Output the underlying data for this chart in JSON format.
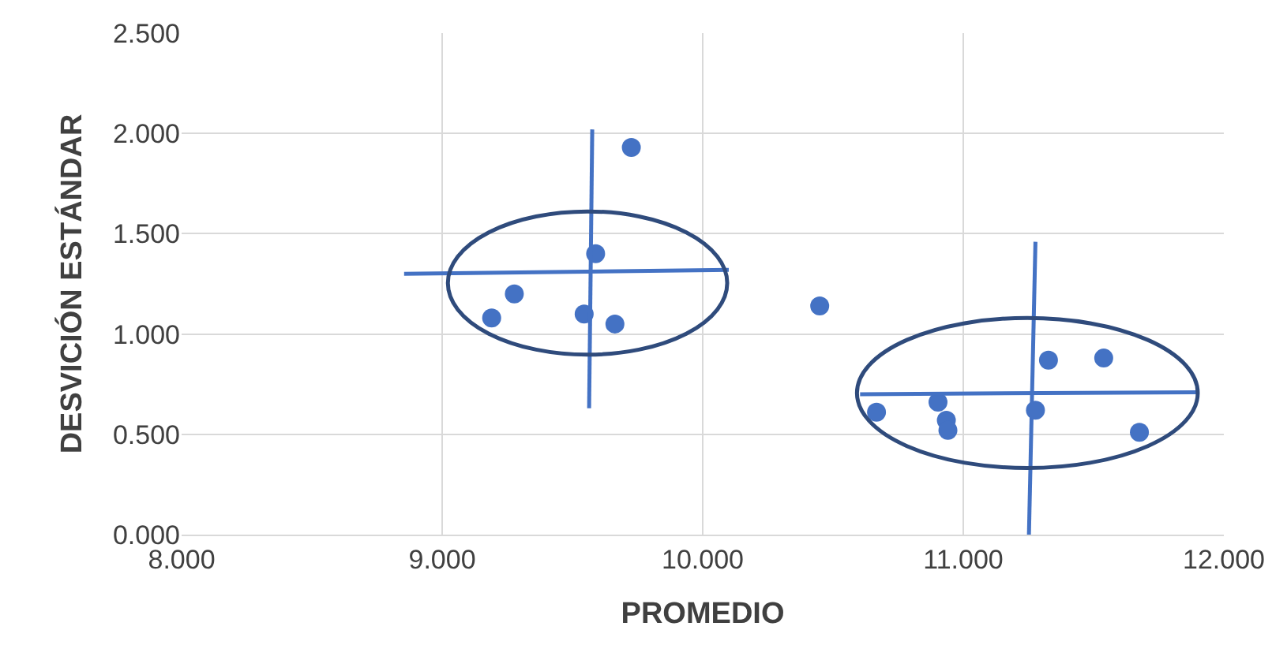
{
  "chart_data": {
    "type": "scatter",
    "xlabel": "PROMEDIO",
    "ylabel": "DESVICIÓN ESTÁNDAR",
    "xlim": [
      8,
      12
    ],
    "ylim": [
      0,
      2.5
    ],
    "xticks": [
      {
        "value": 8,
        "label": "8.000"
      },
      {
        "value": 9,
        "label": "9.000"
      },
      {
        "value": 10,
        "label": "10.000"
      },
      {
        "value": 11,
        "label": "11.000"
      },
      {
        "value": 12,
        "label": "12.000"
      }
    ],
    "yticks": [
      {
        "value": 0,
        "label": "0.000"
      },
      {
        "value": 0.5,
        "label": "0.500"
      },
      {
        "value": 1,
        "label": "1.000"
      },
      {
        "value": 1.5,
        "label": "1.500"
      },
      {
        "value": 2,
        "label": "2.000"
      },
      {
        "value": 2.5,
        "label": "2.500"
      }
    ],
    "grid": true,
    "marker": "circle",
    "series": [
      {
        "type": "scatter",
        "color": "#4472c4",
        "x": [
          9.19,
          9.277,
          9.589,
          9.545,
          9.663,
          9.726,
          10.449,
          10.667,
          10.903,
          10.935,
          10.941,
          11.277,
          11.327,
          11.539,
          11.676
        ],
        "values": [
          1.08,
          1.2,
          1.4,
          1.1,
          1.05,
          1.93,
          1.14,
          0.61,
          0.66,
          0.57,
          0.52,
          0.62,
          0.87,
          0.88,
          0.51
        ]
      },
      {
        "type": "line",
        "marker": "none",
        "line_style": "solid",
        "color": "#4472c4",
        "x": [
          8.854,
          10.1
        ],
        "values": [
          1.3,
          1.32
        ]
      },
      {
        "type": "line",
        "marker": "none",
        "line_style": "solid",
        "color": "#4472c4",
        "x": [
          9.576,
          9.564
        ],
        "values": [
          2.02,
          0.63
        ]
      },
      {
        "type": "line",
        "marker": "none",
        "line_style": "solid",
        "color": "#4472c4",
        "x": [
          10.604,
          11.894
        ],
        "values": [
          0.7,
          0.71
        ]
      },
      {
        "type": "line",
        "marker": "none",
        "line_style": "solid",
        "color": "#4472c4",
        "x": [
          11.277,
          11.252
        ],
        "values": [
          1.46,
          0
        ]
      }
    ]
  }
}
